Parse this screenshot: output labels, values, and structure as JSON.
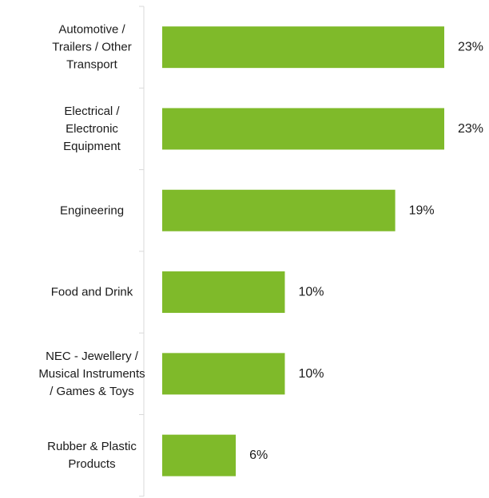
{
  "chart_data": {
    "type": "bar",
    "orientation": "horizontal",
    "categories": [
      [
        "Automotive /",
        "Trailers / Other",
        "Transport"
      ],
      [
        "Electrical /",
        "Electronic",
        "Equipment"
      ],
      [
        "Engineering"
      ],
      [
        "Food and Drink"
      ],
      [
        "NEC - Jewellery /",
        "Musical Instruments",
        "/ Games & Toys"
      ],
      [
        "Rubber & Plastic",
        "Products"
      ]
    ],
    "values": [
      23,
      23,
      19,
      10,
      10,
      6
    ],
    "value_labels": [
      "23%",
      "23%",
      "19%",
      "10%",
      "10%",
      "6%"
    ],
    "unit": "%",
    "xlim": [
      0,
      23
    ],
    "bar_color": "#7fba2a",
    "axis_color": "#d9d9d9",
    "grid": false,
    "legend": "none"
  }
}
